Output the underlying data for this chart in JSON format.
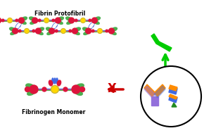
{
  "fibrinogen_label": "Fibrinogen Monomer",
  "protofibril_label": "Fibrin Protofibril",
  "colors": {
    "crimson": "#DC143C",
    "green": "#4CAF50",
    "yellow": "#FFD700",
    "blue": "#4169E1",
    "orange": "#FF8C00",
    "purple": "#9370DB",
    "dark_green": "#228B22",
    "red_arrow": "#CC0000",
    "green_arrow": "#00CC00",
    "background": "#FFFFFF"
  },
  "figsize": [
    3.07,
    1.89
  ],
  "dpi": 100
}
